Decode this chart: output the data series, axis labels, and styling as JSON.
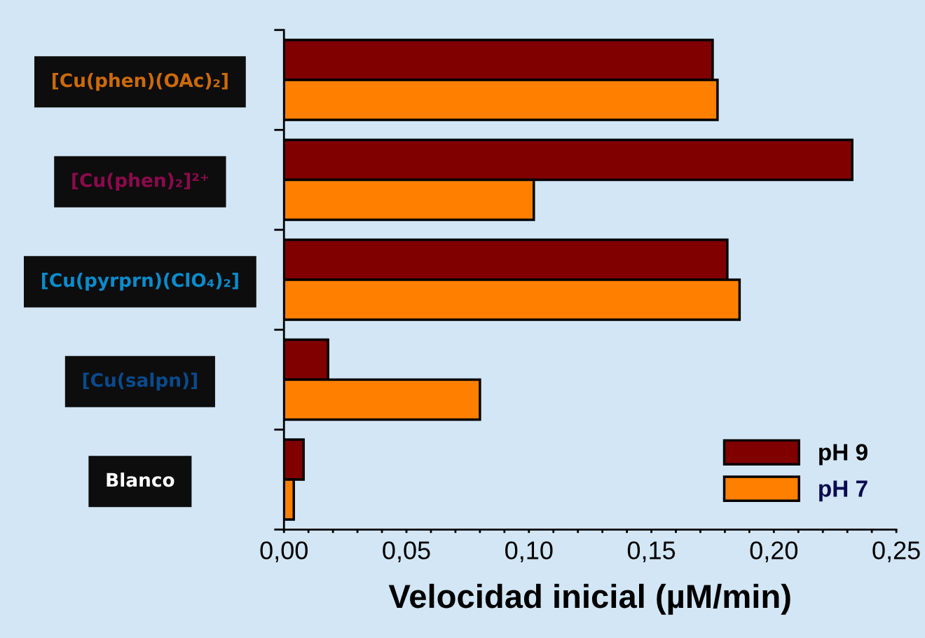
{
  "chart_data": {
    "type": "bar",
    "orientation": "horizontal",
    "xlabel": "Velocidad inicial (µM/min)",
    "categories": [
      "[Cu(phen)(OAc)₂]",
      "[Cu(phen)₂]²⁺",
      "[Cu(pyrprn)(ClO₄)₂]",
      "[Cu(salpn)]",
      "Blanco"
    ],
    "series": [
      {
        "name": "pH 9",
        "color": "#800000",
        "values": [
          0.175,
          0.232,
          0.181,
          0.018,
          0.008
        ]
      },
      {
        "name": "pH 7",
        "color": "#ff8000",
        "values": [
          0.177,
          0.102,
          0.186,
          0.08,
          0.004
        ]
      }
    ],
    "xlim": [
      0,
      0.25
    ],
    "xticks": [
      {
        "value": 0,
        "label": "0,00"
      },
      {
        "value": 0.01,
        "label": null
      },
      {
        "value": 0.02,
        "label": null
      },
      {
        "value": 0.03,
        "label": null
      },
      {
        "value": 0.04,
        "label": null
      },
      {
        "value": 0.05,
        "label": "0,05"
      },
      {
        "value": 0.06,
        "label": null
      },
      {
        "value": 0.07,
        "label": null
      },
      {
        "value": 0.08,
        "label": null
      },
      {
        "value": 0.09,
        "label": null
      },
      {
        "value": 0.1,
        "label": "0,10"
      },
      {
        "value": 0.11,
        "label": null
      },
      {
        "value": 0.12,
        "label": null
      },
      {
        "value": 0.13,
        "label": null
      },
      {
        "value": 0.14,
        "label": null
      },
      {
        "value": 0.15,
        "label": "0,15"
      },
      {
        "value": 0.16,
        "label": null
      },
      {
        "value": 0.17,
        "label": null
      },
      {
        "value": 0.18,
        "label": null
      },
      {
        "value": 0.19,
        "label": null
      },
      {
        "value": 0.2,
        "label": "0,20"
      },
      {
        "value": 0.21,
        "label": null
      },
      {
        "value": 0.22,
        "label": null
      },
      {
        "value": 0.23,
        "label": null
      },
      {
        "value": 0.24,
        "label": null
      },
      {
        "value": 0.25,
        "label": "0,25"
      }
    ],
    "legend": "bottom right",
    "grid": false
  }
}
